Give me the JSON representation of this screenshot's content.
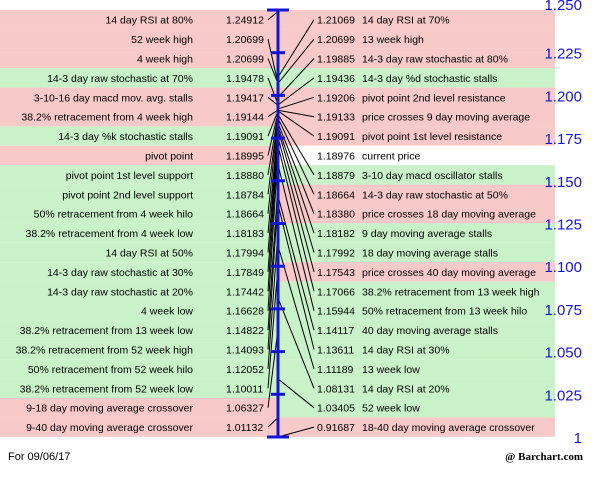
{
  "chart_data": {
    "type": "pivot-ladder",
    "current_price": {
      "value": 1.18976,
      "label": "current price"
    },
    "axis": {
      "ylim": [
        1.0,
        1.25
      ],
      "ticks": [
        "1.250",
        "1.225",
        "1.200",
        "1.175",
        "1.150",
        "1.125",
        "1.100",
        "1.075",
        "1.050",
        "1.025",
        "1"
      ]
    },
    "rows": [
      {
        "left_label": "14 day RSI at 80%",
        "left_value": "1.24912",
        "right_value": "1.21069",
        "right_label": "14 day RSI at 70%",
        "color": "red"
      },
      {
        "left_label": "52 week high",
        "left_value": "1.20699",
        "right_value": "1.20699",
        "right_label": "13 week high",
        "color": "red"
      },
      {
        "left_label": "4 week high",
        "left_value": "1.20699",
        "right_value": "1.19885",
        "right_label": "14-3 day raw stochastic at 80%",
        "color": "red"
      },
      {
        "left_label": "14-3 day raw stochastic at 70%",
        "left_value": "1.19478",
        "right_value": "1.19436",
        "right_label": "14-3 day %d stochastic stalls",
        "color": "green"
      },
      {
        "left_label": "3-10-16 day macd mov. avg. stalls",
        "left_value": "1.19417",
        "right_value": "1.19206",
        "right_label": "pivot point 2nd level resistance",
        "color": "red"
      },
      {
        "left_label": "38.2% retracement from 4 week high",
        "left_value": "1.19144",
        "right_value": "1.19133",
        "right_label": "price crosses 9 day moving average",
        "color": "red"
      },
      {
        "left_label": "14-3 day %k stochastic stalls",
        "left_value": "1.19091",
        "right_value": "1.19091",
        "right_label": "pivot point 1st level resistance",
        "color": "green_red"
      },
      {
        "left_label": "pivot point",
        "left_value": "1.18995",
        "right_value": "1.18976",
        "right_label": "current price",
        "color": "red_white"
      },
      {
        "left_label": "pivot point 1st level support",
        "left_value": "1.18880",
        "right_value": "1.18879",
        "right_label": "3-10 day macd oscillator stalls",
        "color": "green"
      },
      {
        "left_label": "pivot point 2nd level support",
        "left_value": "1.18784",
        "right_value": "1.18664",
        "right_label": "14-3 day raw stochastic at 50%",
        "color": "green_red"
      },
      {
        "left_label": "50% retracement from 4 week hilo",
        "left_value": "1.18664",
        "right_value": "1.18380",
        "right_label": "price crosses 18 day moving average",
        "color": "green_red"
      },
      {
        "left_label": "38.2% retracement from 4 week low",
        "left_value": "1.18183",
        "right_value": "1.18182",
        "right_label": "9 day moving average stalls",
        "color": "green"
      },
      {
        "left_label": "14 day RSI at 50%",
        "left_value": "1.17994",
        "right_value": "1.17992",
        "right_label": "18 day moving average stalls",
        "color": "green"
      },
      {
        "left_label": "14-3 day raw stochastic at 30%",
        "left_value": "1.17849",
        "right_value": "1.17543",
        "right_label": "price crosses 40 day moving average",
        "color": "green_red"
      },
      {
        "left_label": "14-3 day raw stochastic at 20%",
        "left_value": "1.17442",
        "right_value": "1.17066",
        "right_label": "38.2% retracement from 13 week high",
        "color": "green"
      },
      {
        "left_label": "4 week low",
        "left_value": "1.16628",
        "right_value": "1.15944",
        "right_label": "50% retracement from 13 week hilo",
        "color": "green"
      },
      {
        "left_label": "38.2% retracement from 13 week low",
        "left_value": "1.14822",
        "right_value": "1.14117",
        "right_label": "40 day moving average stalls",
        "color": "green"
      },
      {
        "left_label": "38.2% retracement from 52 week high",
        "left_value": "1.14093",
        "right_value": "1.13611",
        "right_label": "14 day RSI at 30%",
        "color": "green"
      },
      {
        "left_label": "50% retracement from 52 week hilo",
        "left_value": "1.12052",
        "right_value": "1.11189",
        "right_label": "13 week low",
        "color": "green"
      },
      {
        "left_label": "38.2% retracement from 52 week low",
        "left_value": "1.10011",
        "right_value": "1.08131",
        "right_label": "14 day RSI at 20%",
        "color": "green"
      },
      {
        "left_label": "9-18 day moving average crossover",
        "left_value": "1.06327",
        "right_value": "1.03405",
        "right_label": "52 week low",
        "color": "red_green"
      },
      {
        "left_label": "9-40 day moving average crossover",
        "left_value": "1.01132",
        "right_value": "0.91687",
        "right_label": "18-40 day moving average crossover",
        "color": "red"
      }
    ]
  },
  "colors": {
    "red": "#f7c9c9",
    "green": "#c9f2c9",
    "white": "#ffffff",
    "axis": "#1515d6",
    "line": "#000000"
  },
  "footer": {
    "date_label": "For 09/06/17",
    "brand": "@ Barchart.com"
  }
}
